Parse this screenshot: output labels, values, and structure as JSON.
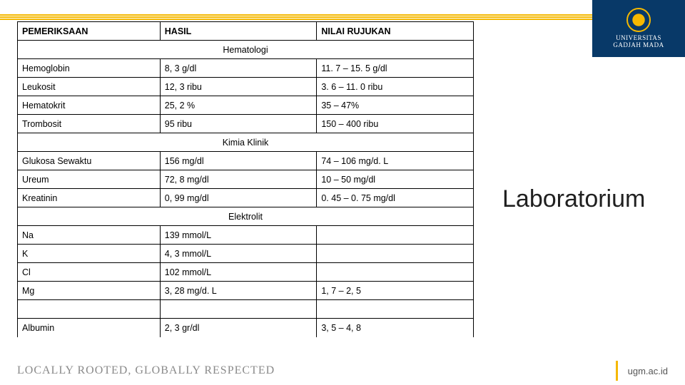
{
  "brand": {
    "line1": "UNIVERSITAS",
    "line2": "GADJAH MADA"
  },
  "table": {
    "headers": {
      "col1": "PEMERIKSAAN",
      "col2": "HASIL",
      "col3": "NILAI RUJUKAN"
    },
    "sections": [
      {
        "name": "Hematologi",
        "rows": [
          {
            "p": "Hemoglobin",
            "h": "8, 3 g/dl",
            "n": "11. 7 – 15. 5 g/dl"
          },
          {
            "p": "Leukosit",
            "h": "12, 3 ribu",
            "n": "3. 6 – 11. 0 ribu"
          },
          {
            "p": "Hematokrit",
            "h": "25, 2 %",
            "n": "35 – 47%"
          },
          {
            "p": "Trombosit",
            "h": "95 ribu",
            "n": "150 – 400 ribu"
          }
        ]
      },
      {
        "name": "Kimia Klinik",
        "rows": [
          {
            "p": "Glukosa Sewaktu",
            "h": "156 mg/dl",
            "n": "74 – 106 mg/d. L"
          },
          {
            "p": "Ureum",
            "h": "72, 8 mg/dl",
            "n": "10 – 50 mg/dl"
          },
          {
            "p": "Kreatinin",
            "h": "0, 99 mg/dl",
            "n": "0. 45 – 0. 75 mg/dl"
          }
        ]
      },
      {
        "name": "Elektrolit",
        "rows": [
          {
            "p": "Na",
            "h": "139 mmol/L",
            "n": ""
          },
          {
            "p": "K",
            "h": "4, 3 mmol/L",
            "n": ""
          },
          {
            "p": "Cl",
            "h": "102 mmol/L",
            "n": ""
          },
          {
            "p": "Mg",
            "h": "3, 28 mg/d. L",
            "n": "1, 7 – 2, 5"
          },
          {
            "p": "",
            "h": "",
            "n": ""
          },
          {
            "p": "Albumin",
            "h": "2, 3 gr/dl",
            "n": "3, 5 – 4, 8"
          }
        ]
      }
    ]
  },
  "title": "Laboratorium",
  "footer": {
    "tagline": "LOCALLY ROOTED, GLOBALLY RESPECTED",
    "url": "ugm.ac.id"
  },
  "colors": {
    "brand_bg": "#083968",
    "accent": "#f5b800",
    "text": "#202020",
    "muted": "#8a8a8a"
  }
}
